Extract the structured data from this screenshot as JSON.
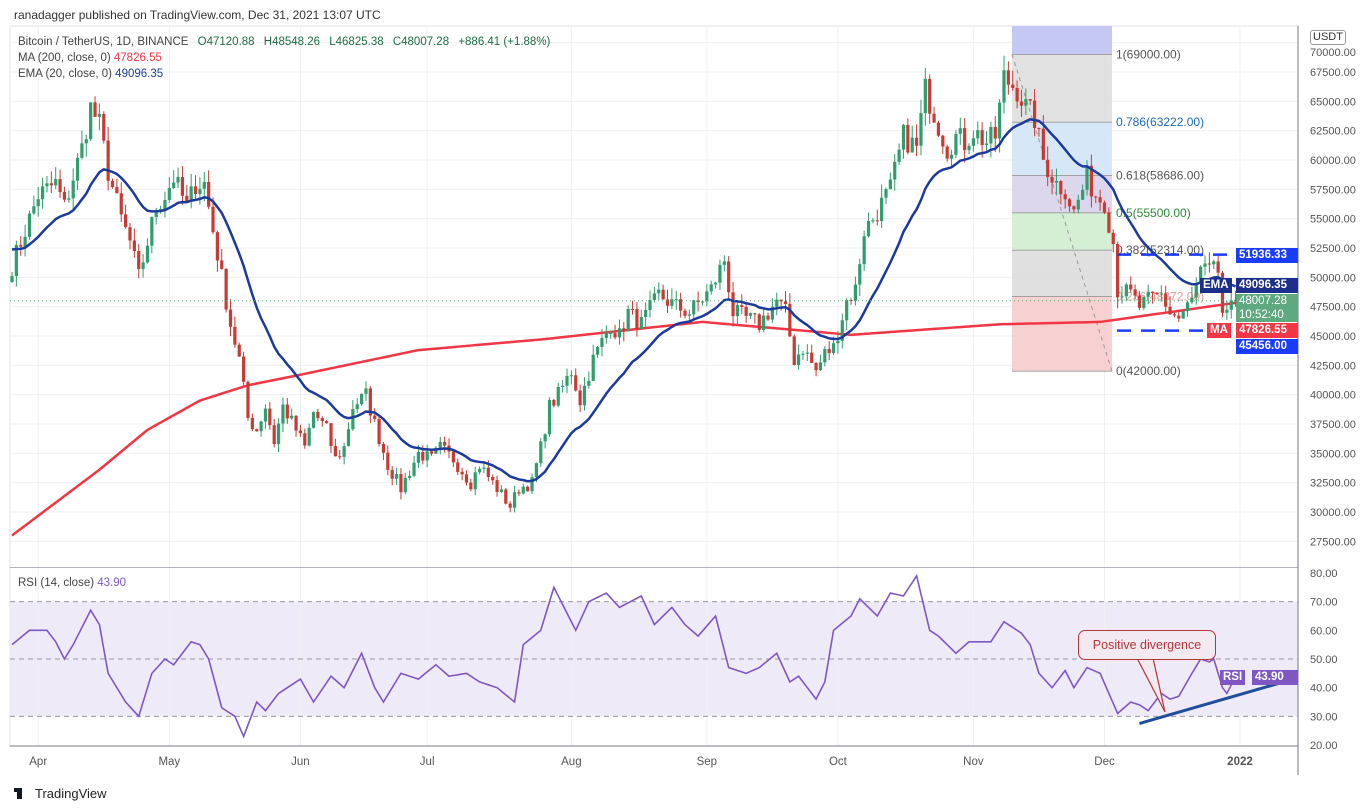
{
  "header": {
    "published": "ranadagger published on TradingView.com, Dec 31, 2021 13:07 UTC",
    "symbol": "Bitcoin / TetherUS, 1D, BINANCE",
    "open": "O47120.88",
    "high": "H48548.26",
    "low": "L46825.38",
    "close": "C48007.28",
    "change": "+886.41 (+1.88%)",
    "ma_label": "MA (200, close, 0)",
    "ma_value": "47826.55",
    "ema_label": "EMA (20, close, 0)",
    "ema_value": "49096.35",
    "rsi_label": "RSI (14, close)",
    "rsi_value": "43.90"
  },
  "axis": {
    "currency": "USDT",
    "price_ticks": [
      "27500.00",
      "30000.00",
      "32500.00",
      "35000.00",
      "37500.00",
      "40000.00",
      "42500.00",
      "45000.00",
      "47500.00",
      "50000.00",
      "52500.00",
      "55000.00",
      "57500.00",
      "60000.00",
      "62500.00",
      "65000.00",
      "67500.00",
      "70000.00"
    ],
    "rsi_ticks": [
      "20.00",
      "30.00",
      "40.00",
      "50.00",
      "60.00",
      "70.00",
      "80.00"
    ],
    "time_ticks": [
      {
        "label": "Apr",
        "day": 6
      },
      {
        "label": "May",
        "day": 36
      },
      {
        "label": "Jun",
        "day": 66
      },
      {
        "label": "Jul",
        "day": 95
      },
      {
        "label": "Aug",
        "day": 128
      },
      {
        "label": "Sep",
        "day": 159
      },
      {
        "label": "Oct",
        "day": 189
      },
      {
        "label": "Nov",
        "day": 220
      },
      {
        "label": "Dec",
        "day": 250
      },
      {
        "label": "2022",
        "day": 281
      }
    ]
  },
  "badges": {
    "resistance": "51936.33",
    "ema_tag": "EMA",
    "ema_value": "49096.35",
    "last_price": "48007.28",
    "countdown": "10:52:40",
    "ma_tag": "MA",
    "ma_value": "47826.55",
    "support": "45456.00",
    "rsi_tag": "RSI",
    "rsi_value": "43.90"
  },
  "fib": [
    {
      "label": "1(69000.00)",
      "price": 69000,
      "color": "#c5c8f2"
    },
    {
      "label": "0.786(63222.00)",
      "price": 63222,
      "color": "#dcdcdc"
    },
    {
      "label": "0.618(58686.00)",
      "price": 58686,
      "color": "#cfe3f6"
    },
    {
      "label": "0.5(55500.00)",
      "price": 55500,
      "color": "#d7d0ea"
    },
    {
      "label": "0.382(52314.00)",
      "price": 52314,
      "color": "#cdeccd"
    },
    {
      "label": "0.236(48372.00)",
      "price": 48372,
      "color": "#dadada"
    },
    {
      "label": "0(42000.00)",
      "price": 42000,
      "color": "#f6c9c9"
    }
  ],
  "levels": {
    "resistance": 51936.33,
    "support": 45456
  },
  "annotation": {
    "text": "Positive divergence"
  },
  "footer": {
    "brand": "TradingView"
  },
  "colors": {
    "up": "#2f9e6e",
    "down": "#c83a34",
    "ma": "#f23645",
    "ema": "#1c3a9c",
    "rsi": "#7e57c2",
    "level": "#1a3cff"
  },
  "chart_data": {
    "type": "candlestick",
    "title": "Bitcoin / TetherUS, 1D, BINANCE",
    "x_unit": "day index (Apr 1 = 6)",
    "ylim": [
      27500,
      70000
    ],
    "close_anchors": [
      [
        0,
        51000
      ],
      [
        6,
        57000
      ],
      [
        10,
        58000
      ],
      [
        12,
        56000
      ],
      [
        16,
        61000
      ],
      [
        18,
        64500
      ],
      [
        20,
        63000
      ],
      [
        22,
        59000
      ],
      [
        25,
        55000
      ],
      [
        27,
        53000
      ],
      [
        29,
        50000
      ],
      [
        33,
        56000
      ],
      [
        35,
        57000
      ],
      [
        37,
        58500
      ],
      [
        40,
        56000
      ],
      [
        42,
        58000
      ],
      [
        44,
        58000
      ],
      [
        45,
        56000
      ],
      [
        48,
        50000
      ],
      [
        50,
        46000
      ],
      [
        52,
        43000
      ],
      [
        54,
        38000
      ],
      [
        56,
        37000
      ],
      [
        58,
        39000
      ],
      [
        60,
        36000
      ],
      [
        62,
        39000
      ],
      [
        65,
        37000
      ],
      [
        67,
        35500
      ],
      [
        69,
        38500
      ],
      [
        72,
        37000
      ],
      [
        74,
        34500
      ],
      [
        76,
        35500
      ],
      [
        78,
        39000
      ],
      [
        81,
        40000
      ],
      [
        83,
        37500
      ],
      [
        86,
        34000
      ],
      [
        89,
        32000
      ],
      [
        91,
        33500
      ],
      [
        93,
        35000
      ],
      [
        96,
        34500
      ],
      [
        98,
        35500
      ],
      [
        101,
        34500
      ],
      [
        105,
        32500
      ],
      [
        107,
        34000
      ],
      [
        111,
        32000
      ],
      [
        114,
        30500
      ],
      [
        116,
        32000
      ],
      [
        119,
        32500
      ],
      [
        121,
        35500
      ],
      [
        123,
        39000
      ],
      [
        125,
        40000
      ],
      [
        128,
        42000
      ],
      [
        130,
        39500
      ],
      [
        133,
        43000
      ],
      [
        137,
        46000
      ],
      [
        139,
        45000
      ],
      [
        141,
        47000
      ],
      [
        144,
        46000
      ],
      [
        148,
        48500
      ],
      [
        152,
        47500
      ],
      [
        155,
        47000
      ],
      [
        160,
        49000
      ],
      [
        163,
        51500
      ],
      [
        165,
        47000
      ],
      [
        168,
        46500
      ],
      [
        171,
        46000
      ],
      [
        175,
        48000
      ],
      [
        177,
        47000
      ],
      [
        179,
        43000
      ],
      [
        181,
        44000
      ],
      [
        184,
        42000
      ],
      [
        186,
        43500
      ],
      [
        188,
        44000
      ],
      [
        191,
        48000
      ],
      [
        193,
        49000
      ],
      [
        195,
        54000
      ],
      [
        197,
        55000
      ],
      [
        201,
        57500
      ],
      [
        204,
        62000
      ],
      [
        207,
        61000
      ],
      [
        209,
        66000
      ],
      [
        211,
        64000
      ],
      [
        214,
        61000
      ],
      [
        216,
        62000
      ],
      [
        218,
        61500
      ],
      [
        220,
        62500
      ],
      [
        223,
        61500
      ],
      [
        225,
        62000
      ],
      [
        227,
        67000
      ],
      [
        230,
        66000
      ],
      [
        232,
        64500
      ],
      [
        234,
        63500
      ],
      [
        236,
        60000
      ],
      [
        239,
        58000
      ],
      [
        241,
        57500
      ],
      [
        243,
        55500
      ],
      [
        246,
        58500
      ],
      [
        248,
        57000
      ],
      [
        250,
        56500
      ],
      [
        252,
        53000
      ],
      [
        253,
        49000
      ],
      [
        256,
        48500
      ],
      [
        258,
        47500
      ],
      [
        260,
        48000
      ],
      [
        263,
        48500
      ],
      [
        265,
        47000
      ],
      [
        267,
        46500
      ],
      [
        270,
        48000
      ],
      [
        272,
        50500
      ],
      [
        274,
        50500
      ],
      [
        276,
        50500
      ],
      [
        277,
        47000
      ],
      [
        278,
        46500
      ],
      [
        280,
        48007.28
      ]
    ],
    "ma200_anchors": [
      [
        0,
        28000
      ],
      [
        20,
        33600
      ],
      [
        31,
        37000
      ],
      [
        43,
        39500
      ],
      [
        54,
        40800
      ],
      [
        66,
        41700
      ],
      [
        93,
        43800
      ],
      [
        121,
        44700
      ],
      [
        158,
        46200
      ],
      [
        192,
        45100
      ],
      [
        226,
        46000
      ],
      [
        249,
        46200
      ],
      [
        280,
        47826.55
      ]
    ],
    "ema20_last": 49096.35,
    "rsi": {
      "ylim": [
        20,
        80
      ],
      "bands": [
        30,
        70
      ],
      "anchors": [
        [
          0,
          55
        ],
        [
          4,
          60
        ],
        [
          8,
          60
        ],
        [
          10,
          56
        ],
        [
          12,
          50
        ],
        [
          14,
          55
        ],
        [
          18,
          67
        ],
        [
          20,
          62
        ],
        [
          22,
          45
        ],
        [
          26,
          35
        ],
        [
          29,
          30
        ],
        [
          32,
          45
        ],
        [
          35,
          50
        ],
        [
          37,
          48
        ],
        [
          41,
          56
        ],
        [
          43,
          55
        ],
        [
          45,
          50
        ],
        [
          48,
          33
        ],
        [
          51,
          30
        ],
        [
          53,
          23
        ],
        [
          56,
          35
        ],
        [
          58,
          32
        ],
        [
          61,
          38
        ],
        [
          66,
          43
        ],
        [
          69,
          35
        ],
        [
          73,
          44
        ],
        [
          76,
          40
        ],
        [
          80,
          52
        ],
        [
          83,
          40
        ],
        [
          85,
          35
        ],
        [
          89,
          45
        ],
        [
          93,
          43
        ],
        [
          97,
          48
        ],
        [
          100,
          44
        ],
        [
          104,
          45
        ],
        [
          107,
          42
        ],
        [
          111,
          40
        ],
        [
          115,
          35
        ],
        [
          117,
          55
        ],
        [
          121,
          60
        ],
        [
          124,
          75
        ],
        [
          129,
          60
        ],
        [
          132,
          70
        ],
        [
          136,
          73
        ],
        [
          139,
          68
        ],
        [
          144,
          72
        ],
        [
          147,
          62
        ],
        [
          151,
          68
        ],
        [
          154,
          62
        ],
        [
          157,
          58
        ],
        [
          161,
          65
        ],
        [
          164,
          47
        ],
        [
          168,
          45
        ],
        [
          171,
          47
        ],
        [
          175,
          52
        ],
        [
          178,
          42
        ],
        [
          180,
          44
        ],
        [
          184,
          36
        ],
        [
          186,
          42
        ],
        [
          188,
          60
        ],
        [
          192,
          65
        ],
        [
          194,
          71
        ],
        [
          198,
          65
        ],
        [
          201,
          73
        ],
        [
          204,
          72
        ],
        [
          207,
          79
        ],
        [
          210,
          60
        ],
        [
          212,
          58
        ],
        [
          216,
          52
        ],
        [
          219,
          56
        ],
        [
          224,
          56
        ],
        [
          227,
          63
        ],
        [
          231,
          59
        ],
        [
          233,
          55
        ],
        [
          235,
          45
        ],
        [
          238,
          40
        ],
        [
          241,
          46
        ],
        [
          243,
          40
        ],
        [
          246,
          47
        ],
        [
          249,
          45
        ],
        [
          251,
          38
        ],
        [
          253,
          31
        ],
        [
          256,
          35
        ],
        [
          258,
          34
        ],
        [
          260,
          32
        ],
        [
          263,
          38
        ],
        [
          265,
          36
        ],
        [
          267,
          37
        ],
        [
          270,
          45
        ],
        [
          272,
          50
        ],
        [
          274,
          49
        ],
        [
          275,
          50
        ],
        [
          277,
          40
        ],
        [
          278,
          38
        ],
        [
          280,
          43.9
        ]
      ],
      "trendline": [
        [
          258,
          27.5
        ],
        [
          291,
          42
        ]
      ]
    }
  }
}
